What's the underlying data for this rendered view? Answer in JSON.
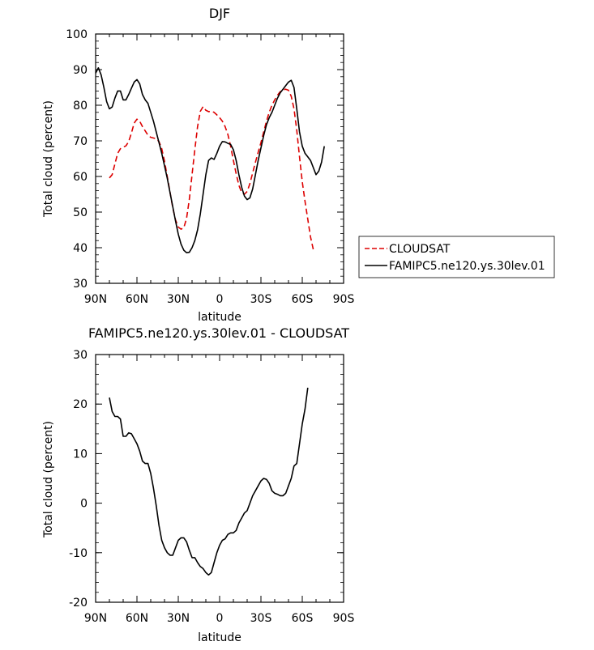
{
  "chart_data": [
    {
      "type": "line",
      "title": "DJF",
      "xlabel": "latitude",
      "ylabel": "Total cloud (percent)",
      "xlim": [
        90,
        -90
      ],
      "ylim": [
        30,
        100
      ],
      "x_ticks": [
        90,
        60,
        30,
        0,
        -30,
        -60,
        -90
      ],
      "x_tick_labels": [
        "90N",
        "60N",
        "30N",
        "0",
        "30S",
        "60S",
        "90S"
      ],
      "y_ticks": [
        30,
        40,
        50,
        60,
        70,
        80,
        90,
        100
      ],
      "y_tick_labels": [
        "30",
        "40",
        "50",
        "60",
        "70",
        "80",
        "90",
        "100"
      ],
      "legend": "right",
      "grid": false,
      "series": [
        {
          "name": "CLOUDSAT",
          "color": "#dd0000",
          "style": "dashed",
          "x": [
            80,
            78,
            76,
            74,
            72,
            70,
            68,
            66,
            64,
            62,
            60,
            58,
            56,
            54,
            52,
            50,
            48,
            46,
            44,
            42,
            40,
            38,
            36,
            34,
            32,
            30,
            28,
            26,
            24,
            22,
            20,
            18,
            16,
            14,
            12,
            10,
            8,
            6,
            4,
            2,
            0,
            -2,
            -4,
            -6,
            -8,
            -10,
            -12,
            -14,
            -16,
            -18,
            -20,
            -22,
            -24,
            -26,
            -28,
            -30,
            -32,
            -34,
            -36,
            -38,
            -40,
            -42,
            -44,
            -46,
            -48,
            -50,
            -52,
            -54,
            -56,
            -58,
            -60,
            -62,
            -64,
            -66,
            -68,
            -70,
            -72,
            -74,
            -76,
            -78,
            -80
          ],
          "y": [
            59.6,
            60.5,
            63.5,
            66.5,
            67.8,
            68.2,
            68.6,
            69.8,
            72.2,
            75.0,
            76.1,
            75.5,
            74.0,
            72.8,
            71.6,
            71.0,
            70.8,
            70.6,
            69.8,
            67.8,
            64.3,
            60.0,
            55.6,
            51.2,
            47.8,
            45.8,
            45.2,
            45.6,
            48.2,
            53.5,
            60.5,
            67.5,
            74.0,
            78.3,
            79.6,
            78.6,
            78.2,
            78.3,
            78.0,
            77.3,
            76.5,
            75.5,
            74.0,
            71.8,
            68.5,
            64.5,
            60.8,
            57.5,
            55.5,
            55.0,
            55.8,
            58.0,
            61.0,
            64.0,
            66.8,
            69.5,
            72.5,
            75.5,
            78.0,
            80.0,
            81.5,
            82.8,
            83.8,
            84.3,
            84.5,
            84.2,
            82.5,
            79.0,
            73.0,
            65.5,
            58.5,
            53.0,
            48.0,
            43.0,
            39.5,
            null,
            null,
            null,
            null,
            null,
            null
          ]
        },
        {
          "name": "FAMIPC5.ne120.ys.30lev.01",
          "color": "#000000",
          "style": "solid",
          "x": [
            90,
            88,
            86,
            84,
            82,
            80,
            78,
            76,
            74,
            72,
            70,
            68,
            66,
            64,
            62,
            60,
            58,
            56,
            54,
            52,
            50,
            48,
            46,
            44,
            42,
            40,
            38,
            36,
            34,
            32,
            30,
            28,
            26,
            24,
            22,
            20,
            18,
            16,
            14,
            12,
            10,
            8,
            6,
            4,
            2,
            0,
            -2,
            -4,
            -6,
            -8,
            -10,
            -12,
            -14,
            -16,
            -18,
            -20,
            -22,
            -24,
            -26,
            -28,
            -30,
            -32,
            -34,
            -36,
            -38,
            -40,
            -42,
            -44,
            -46,
            -48,
            -50,
            -52,
            -54,
            -56,
            -58,
            -60,
            -62,
            -64,
            -66,
            -68,
            -70,
            -72,
            -74,
            -76,
            -78,
            -80,
            -82,
            -84,
            -86,
            -88,
            -90
          ],
          "y": [
            89.0,
            90.5,
            88.5,
            85.0,
            81.0,
            79.0,
            79.5,
            82.0,
            84.0,
            84.0,
            81.5,
            81.5,
            83.0,
            84.8,
            86.5,
            87.2,
            86.0,
            83.0,
            81.5,
            80.5,
            78.0,
            75.5,
            72.5,
            69.5,
            66.5,
            63.0,
            59.5,
            55.5,
            51.5,
            47.5,
            43.8,
            41.0,
            39.3,
            38.6,
            38.7,
            40.0,
            42.0,
            45.0,
            49.5,
            55.0,
            60.5,
            64.5,
            65.2,
            64.8,
            66.5,
            68.5,
            69.8,
            69.7,
            69.3,
            69.0,
            67.5,
            64.5,
            60.5,
            57.0,
            54.5,
            53.5,
            54.0,
            56.5,
            60.5,
            64.5,
            68.0,
            71.5,
            74.5,
            76.5,
            78.0,
            80.0,
            82.0,
            83.5,
            84.5,
            85.5,
            86.5,
            87.0,
            85.0,
            79.0,
            72.5,
            68.5,
            66.5,
            65.5,
            64.5,
            62.5,
            60.5,
            61.5,
            64.0,
            68.5,
            null,
            null,
            null,
            null,
            null,
            null,
            null
          ]
        }
      ]
    },
    {
      "type": "line",
      "title": "FAMIPC5.ne120.ys.30lev.01 - CLOUDSAT",
      "xlabel": "latitude",
      "ylabel": "Total cloud (percent)",
      "xlim": [
        90,
        -90
      ],
      "ylim": [
        -20,
        30
      ],
      "x_ticks": [
        90,
        60,
        30,
        0,
        -30,
        -60,
        -90
      ],
      "x_tick_labels": [
        "90N",
        "60N",
        "30N",
        "0",
        "30S",
        "60S",
        "90S"
      ],
      "y_ticks": [
        -20,
        -10,
        0,
        10,
        20,
        30
      ],
      "y_tick_labels": [
        "-20",
        "-10",
        "0",
        "10",
        "20",
        "30"
      ],
      "grid": false,
      "series": [
        {
          "color": "#000000",
          "style": "solid",
          "x": [
            80,
            78,
            76,
            74,
            72,
            70,
            68,
            66,
            64,
            62,
            60,
            58,
            56,
            54,
            52,
            50,
            48,
            46,
            44,
            42,
            40,
            38,
            36,
            34,
            32,
            30,
            28,
            26,
            24,
            22,
            20,
            18,
            16,
            14,
            12,
            10,
            8,
            6,
            4,
            2,
            0,
            -2,
            -4,
            -6,
            -8,
            -10,
            -12,
            -14,
            -16,
            -18,
            -20,
            -22,
            -24,
            -26,
            -28,
            -30,
            -32,
            -34,
            -36,
            -38,
            -40,
            -42,
            -44,
            -46,
            -48,
            -50,
            -52,
            -54,
            -56,
            -58,
            -60,
            -62,
            -64,
            -66,
            -68,
            -70,
            -72,
            -74,
            -76,
            -78,
            -80
          ],
          "y": [
            21.3,
            18.5,
            17.5,
            17.5,
            17.0,
            13.5,
            13.5,
            14.2,
            14.0,
            13.0,
            12.0,
            10.5,
            8.5,
            8.0,
            8.0,
            6.0,
            3.0,
            -0.5,
            -4.5,
            -7.5,
            -9.0,
            -10.0,
            -10.5,
            -10.5,
            -9.0,
            -7.5,
            -7.0,
            -7.0,
            -7.8,
            -9.5,
            -11.0,
            -11.0,
            -12.0,
            -12.8,
            -13.2,
            -14.0,
            -14.5,
            -14.0,
            -12.0,
            -10.0,
            -8.5,
            -7.5,
            -7.2,
            -6.3,
            -6.0,
            -6.0,
            -5.5,
            -4.0,
            -3.0,
            -2.0,
            -1.5,
            0.0,
            1.5,
            2.5,
            3.5,
            4.5,
            5.0,
            4.8,
            4.0,
            2.5,
            2.0,
            1.8,
            1.5,
            1.5,
            2.0,
            3.5,
            5.0,
            7.5,
            8.0,
            12.0,
            16.0,
            19.0,
            23.3,
            null,
            null,
            null,
            null,
            null,
            null,
            null,
            null
          ]
        }
      ]
    }
  ]
}
